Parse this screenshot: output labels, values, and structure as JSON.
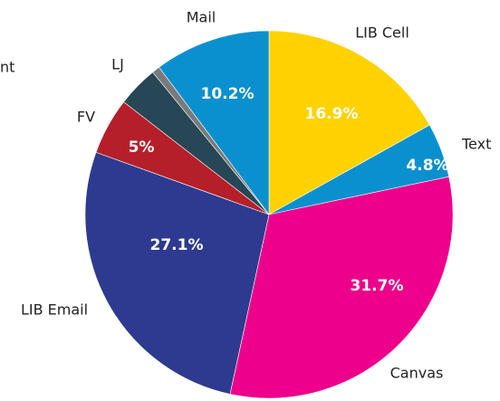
{
  "chart_data": {
    "type": "pie",
    "categories": [
      "LIB Cell",
      "Text",
      "Canvas",
      "LIB Email",
      "FV",
      "LJ",
      "nt",
      "Mail"
    ],
    "values": [
      16.9,
      4.8,
      31.7,
      27.1,
      5,
      3.6,
      0.7,
      10.2
    ],
    "value_labels": [
      "16.9%",
      "4.8%",
      "31.7%",
      "27.1%",
      "5%",
      null,
      null,
      "10.2%"
    ],
    "colors": [
      "#FFD200",
      "#0B90CF",
      "#EC008C",
      "#2E3A8F",
      "#B51F2A",
      "#274656",
      "#7A7A7A",
      "#0B90CF"
    ]
  }
}
